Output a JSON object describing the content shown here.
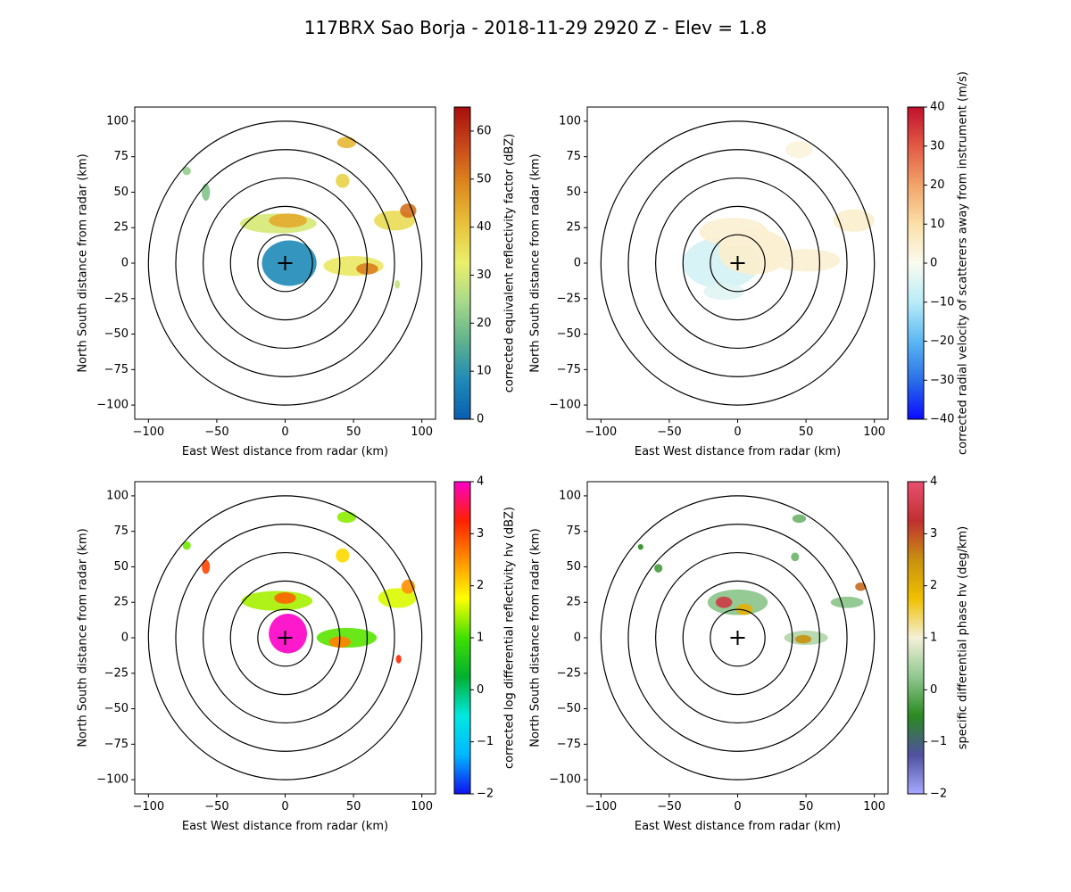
{
  "figure": {
    "title": "117BRX Sao Borja - 2018-11-29 2920 Z -  Elev = 1.8"
  },
  "range_rings_km": [
    20,
    40,
    60,
    80,
    100
  ],
  "chart_data": [
    {
      "type": "heatmap",
      "field": "reflectivity",
      "xlabel": "East West distance from radar (km)",
      "ylabel": "North South distance from radar (km)",
      "xlim": [
        -110,
        110
      ],
      "ylim": [
        -110,
        110
      ],
      "xticks": [
        -100,
        -50,
        0,
        50,
        100
      ],
      "yticks": [
        -100,
        -75,
        -50,
        -25,
        0,
        25,
        50,
        75,
        100
      ],
      "colorbar": {
        "label": "corrected equivalent reflectivity factor (dBZ)",
        "vmin": 0,
        "vmax": 65,
        "ticks": [
          0,
          10,
          20,
          30,
          40,
          50,
          60
        ],
        "stops": [
          "#0a5fb0",
          "#1e8ab8",
          "#5fb28c",
          "#a8d98a",
          "#eaf06a",
          "#e8c23a",
          "#dd8a1e",
          "#c8481a",
          "#a80d0d"
        ]
      },
      "echoes": [
        {
          "x": 3,
          "y": 0,
          "rx": 20,
          "ry": 16,
          "value": 8
        },
        {
          "x": -5,
          "y": 28,
          "rx": 28,
          "ry": 7,
          "value": 30
        },
        {
          "x": 2,
          "y": 30,
          "rx": 14,
          "ry": 5,
          "value": 44
        },
        {
          "x": 50,
          "y": -2,
          "rx": 22,
          "ry": 7,
          "value": 34
        },
        {
          "x": 60,
          "y": -4,
          "rx": 8,
          "ry": 4,
          "value": 50
        },
        {
          "x": 80,
          "y": 30,
          "rx": 15,
          "ry": 7,
          "value": 36
        },
        {
          "x": 90,
          "y": 37,
          "rx": 6,
          "ry": 5,
          "value": 52
        },
        {
          "x": 45,
          "y": 85,
          "rx": 7,
          "ry": 4,
          "value": 42
        },
        {
          "x": 42,
          "y": 58,
          "rx": 5,
          "ry": 5,
          "value": 38
        },
        {
          "x": -58,
          "y": 50,
          "rx": 3,
          "ry": 6,
          "value": 20
        },
        {
          "x": -72,
          "y": 65,
          "rx": 3,
          "ry": 3,
          "value": 22
        },
        {
          "x": 82,
          "y": -15,
          "rx": 2,
          "ry": 3,
          "value": 28
        }
      ]
    },
    {
      "type": "heatmap",
      "field": "velocity",
      "xlabel": "East West distance from radar (km)",
      "ylabel": "North South distance from radar (km)",
      "xlim": [
        -110,
        110
      ],
      "ylim": [
        -110,
        110
      ],
      "xticks": [
        -100,
        -50,
        0,
        50,
        100
      ],
      "yticks": [
        -100,
        -75,
        -50,
        -25,
        0,
        25,
        50,
        75,
        100
      ],
      "colorbar": {
        "label": "corrected radial velocity of scatterers away from instrument (m/s)",
        "vmin": -40,
        "vmax": 40,
        "ticks": [
          -40,
          -30,
          -20,
          -10,
          0,
          10,
          20,
          30,
          40
        ],
        "stops": [
          "#0b0bff",
          "#2a6fe8",
          "#5cb8f2",
          "#b8ecf8",
          "#fbfbf0",
          "#fbe0a8",
          "#f2a46a",
          "#e25a45",
          "#c0102c"
        ]
      },
      "echoes": [
        {
          "x": -12,
          "y": 0,
          "rx": 28,
          "ry": 18,
          "value": -6
        },
        {
          "x": 12,
          "y": 8,
          "rx": 26,
          "ry": 16,
          "value": 5
        },
        {
          "x": -3,
          "y": 22,
          "rx": 25,
          "ry": 10,
          "value": 4
        },
        {
          "x": 50,
          "y": 2,
          "rx": 25,
          "ry": 8,
          "value": 4
        },
        {
          "x": 85,
          "y": 30,
          "rx": 15,
          "ry": 8,
          "value": 5
        },
        {
          "x": 45,
          "y": 80,
          "rx": 10,
          "ry": 6,
          "value": 3
        },
        {
          "x": -10,
          "y": -20,
          "rx": 15,
          "ry": 6,
          "value": -4
        }
      ]
    },
    {
      "type": "heatmap",
      "field": "differential_reflectivity",
      "xlabel": "East West distance from radar (km)",
      "ylabel": "North South distance from radar (km)",
      "xlim": [
        -110,
        110
      ],
      "ylim": [
        -110,
        110
      ],
      "xticks": [
        -100,
        -50,
        0,
        50,
        100
      ],
      "yticks": [
        -100,
        -75,
        -50,
        -25,
        0,
        25,
        50,
        75,
        100
      ],
      "colorbar": {
        "label": "corrected log differential reflectivity hv (dBZ)",
        "vmin": -2,
        "vmax": 4,
        "ticks": [
          -2,
          -1,
          0,
          1,
          2,
          3,
          4
        ],
        "stops": [
          "#1010f0",
          "#00b8ff",
          "#00e8e0",
          "#00b030",
          "#40e000",
          "#ffff00",
          "#ff9000",
          "#ff2000",
          "#ff00c8"
        ]
      },
      "echoes": [
        {
          "x": -6,
          "y": 26,
          "rx": 26,
          "ry": 7,
          "value": 1.4
        },
        {
          "x": 0,
          "y": 28,
          "rx": 8,
          "ry": 4,
          "value": 2.8
        },
        {
          "x": 45,
          "y": 0,
          "rx": 22,
          "ry": 7,
          "value": 1.1
        },
        {
          "x": 40,
          "y": -3,
          "rx": 8,
          "ry": 4,
          "value": 2.6
        },
        {
          "x": 2,
          "y": 3,
          "rx": 14,
          "ry": 14,
          "value": 4
        },
        {
          "x": 82,
          "y": 28,
          "rx": 14,
          "ry": 7,
          "value": 1.6
        },
        {
          "x": 90,
          "y": 36,
          "rx": 5,
          "ry": 5,
          "value": 2.5
        },
        {
          "x": 45,
          "y": 85,
          "rx": 7,
          "ry": 4,
          "value": 1.3
        },
        {
          "x": 42,
          "y": 58,
          "rx": 5,
          "ry": 5,
          "value": 2.0
        },
        {
          "x": -58,
          "y": 50,
          "rx": 3,
          "ry": 5,
          "value": 3.0
        },
        {
          "x": -72,
          "y": 65,
          "rx": 3,
          "ry": 3,
          "value": 1.2
        },
        {
          "x": 83,
          "y": -15,
          "rx": 2,
          "ry": 3,
          "value": 3.2
        }
      ]
    },
    {
      "type": "heatmap",
      "field": "specific_differential_phase",
      "xlabel": "East West distance from radar (km)",
      "ylabel": "North South distance from radar (km)",
      "xlim": [
        -110,
        110
      ],
      "ylim": [
        -110,
        110
      ],
      "xticks": [
        -100,
        -50,
        0,
        50,
        100
      ],
      "yticks": [
        -100,
        -75,
        -50,
        -25,
        0,
        25,
        50,
        75,
        100
      ],
      "colorbar": {
        "label": "specific differential phase hv (deg/km)",
        "vmin": -2,
        "vmax": 4,
        "ticks": [
          -2,
          -1,
          0,
          1,
          2,
          3,
          4
        ],
        "stops": [
          "#a8a8ff",
          "#5050a0",
          "#2a8a20",
          "#90c890",
          "#f4f0d8",
          "#f0c000",
          "#c89010",
          "#c03030",
          "#e85070"
        ]
      },
      "echoes": [
        {
          "x": 0,
          "y": 25,
          "rx": 22,
          "ry": 9,
          "value": 0.2
        },
        {
          "x": -10,
          "y": 25,
          "rx": 6,
          "ry": 4,
          "value": 3.5
        },
        {
          "x": 5,
          "y": 20,
          "rx": 6,
          "ry": 4,
          "value": 2.0
        },
        {
          "x": 50,
          "y": 0,
          "rx": 16,
          "ry": 5,
          "value": 0.5
        },
        {
          "x": 48,
          "y": -1,
          "rx": 6,
          "ry": 3,
          "value": 2.5
        },
        {
          "x": 80,
          "y": 25,
          "rx": 12,
          "ry": 4,
          "value": 0.2
        },
        {
          "x": 90,
          "y": 36,
          "rx": 4,
          "ry": 3,
          "value": 2.8
        },
        {
          "x": 45,
          "y": 84,
          "rx": 5,
          "ry": 3,
          "value": 0.0
        },
        {
          "x": 42,
          "y": 57,
          "rx": 3,
          "ry": 3,
          "value": 0.0
        },
        {
          "x": -58,
          "y": 49,
          "rx": 3,
          "ry": 3,
          "value": -0.3
        },
        {
          "x": -71,
          "y": 64,
          "rx": 2,
          "ry": 2,
          "value": -0.5
        }
      ]
    }
  ]
}
